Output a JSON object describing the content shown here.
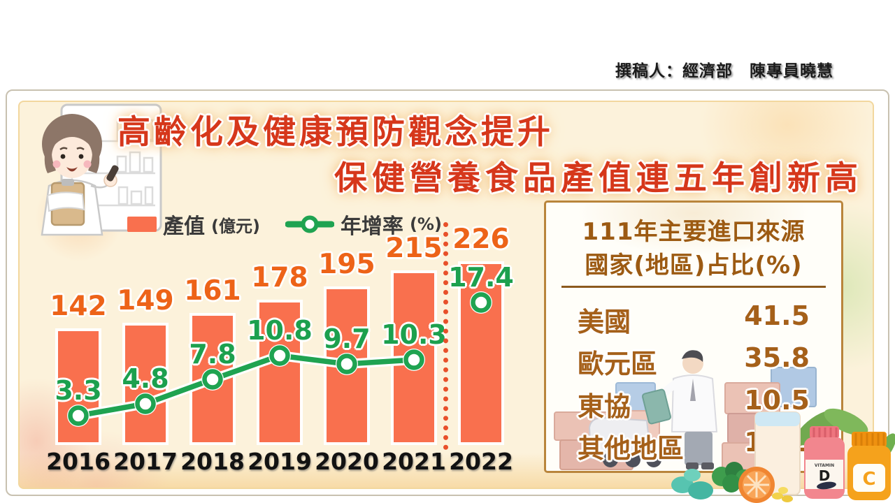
{
  "page": {
    "author_credit": "撰稿人：經濟部　陳專員曉慧"
  },
  "title": {
    "line1": "高齡化及健康預防觀念提升",
    "line2": "保健營養食品產值連五年創新高"
  },
  "legend": {
    "value_label": "產值",
    "value_unit": "(億元)",
    "rate_label": "年增率",
    "rate_unit": "(%)"
  },
  "chart_data": {
    "type": "bar",
    "categories": [
      "2016",
      "2017",
      "2018",
      "2019",
      "2020",
      "2021",
      "2022"
    ],
    "series": [
      {
        "name": "產值(億元)",
        "type": "bar",
        "values": [
          142,
          149,
          161,
          178,
          195,
          215,
          226
        ]
      },
      {
        "name": "年增率(%)",
        "type": "line",
        "values": [
          3.3,
          4.8,
          7.8,
          10.8,
          9.7,
          10.3,
          17.4
        ]
      }
    ],
    "title": "保健營養食品產值連五年創新高",
    "xlabel": "",
    "ylabel": "",
    "grid": false,
    "legend_position": "top",
    "notes": "2022 is separated from 2016-2021 by a vertical dotted line; the growth-rate line connects 2016-2021 only and 2022 is an isolated marker"
  },
  "import_panel": {
    "title_line1": "111年主要進口來源",
    "title_line2": "國家(地區)占比(%)",
    "rows": [
      {
        "name": "美國",
        "value": "41.5"
      },
      {
        "name": "歐元區",
        "value": "35.8"
      },
      {
        "name": "東協",
        "value": "10.5"
      },
      {
        "name": "其他地區",
        "value": "12.2"
      }
    ]
  },
  "decorations": {
    "vitamin_word": "VITAMIN",
    "vitamin_d_letter": "D",
    "vitamin_c_letter": "C"
  },
  "colors": {
    "bar": "#F9704E",
    "bar_label": "#ED6318",
    "line": "#1FA351",
    "rate_label": "#1CA04E",
    "title": "#D6371B",
    "panel_border": "#B9853C",
    "panel_text": "#A5601A",
    "dotted_divider": "#E8502A",
    "card_bg": "#FCF2DB"
  }
}
